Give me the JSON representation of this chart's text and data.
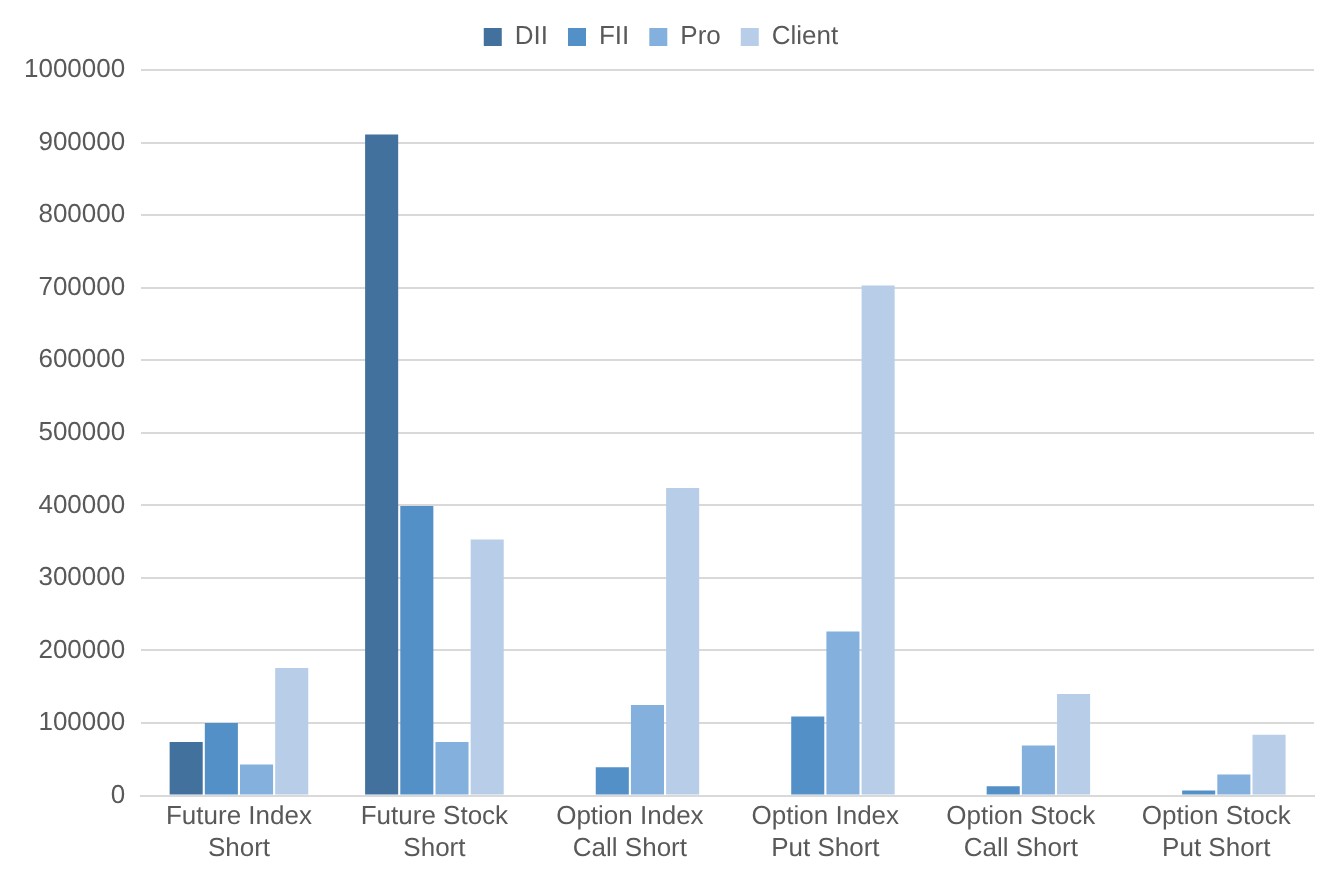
{
  "chart_data": {
    "type": "bar",
    "categories": [
      "Future Index Short",
      "Future Stock Short",
      "Option Index Call Short",
      "Option Index Put Short",
      "Option Stock Call Short",
      "Option Stock Put Short"
    ],
    "series": [
      {
        "name": "DII",
        "color": "#41719c",
        "values": [
          74000,
          911000,
          0,
          0,
          0,
          0
        ]
      },
      {
        "name": "FII",
        "color": "#5390c8",
        "values": [
          100000,
          399000,
          39000,
          109000,
          13000,
          7000
        ]
      },
      {
        "name": "Pro",
        "color": "#84b0de",
        "values": [
          43000,
          74000,
          125000,
          226000,
          69000,
          29000
        ]
      },
      {
        "name": "Client",
        "color": "#b8cde8",
        "values": [
          176000,
          353000,
          424000,
          703000,
          140000,
          84000
        ]
      }
    ],
    "ylim": [
      0,
      1000000
    ],
    "yticks": [
      0,
      100000,
      200000,
      300000,
      400000,
      500000,
      600000,
      700000,
      800000,
      900000,
      1000000
    ],
    "grid": "y",
    "legend": "top"
  }
}
